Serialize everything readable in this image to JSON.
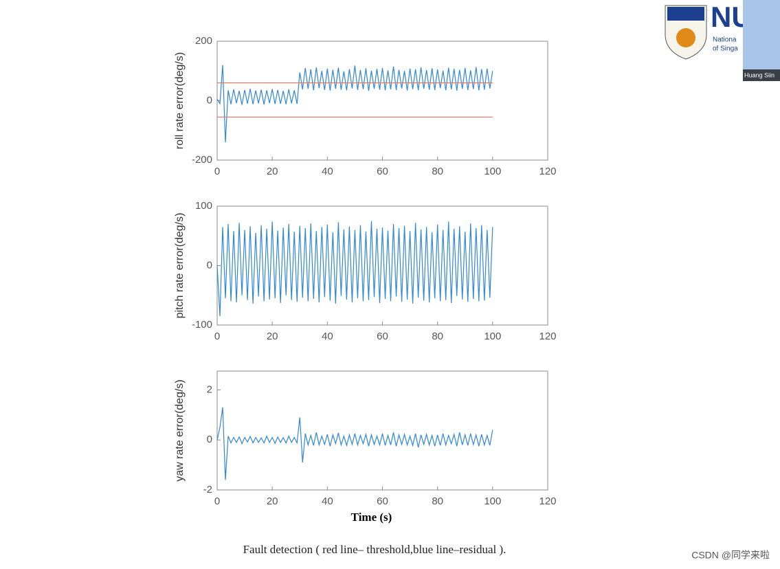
{
  "chart_data": [
    {
      "type": "line",
      "ylabel": "roll rate error(deg/s)",
      "x": [
        0,
        1,
        2,
        3,
        4,
        5,
        6,
        7,
        8,
        9,
        10,
        11,
        12,
        13,
        14,
        15,
        16,
        17,
        18,
        19,
        20,
        21,
        22,
        23,
        24,
        25,
        26,
        27,
        28,
        29,
        30,
        31,
        32,
        33,
        34,
        35,
        36,
        37,
        38,
        39,
        40,
        41,
        42,
        43,
        44,
        45,
        46,
        47,
        48,
        49,
        50,
        51,
        52,
        53,
        54,
        55,
        56,
        57,
        58,
        59,
        60,
        61,
        62,
        63,
        64,
        65,
        66,
        67,
        68,
        69,
        70,
        71,
        72,
        73,
        74,
        75,
        76,
        77,
        78,
        79,
        80,
        81,
        82,
        83,
        84,
        85,
        86,
        87,
        88,
        89,
        90,
        91,
        92,
        93,
        94,
        95,
        96,
        97,
        98,
        99,
        100
      ],
      "series": [
        {
          "color": "#2f86d8",
          "values": [
            5,
            -10,
            120,
            -140,
            35,
            -12,
            38,
            -8,
            33,
            -14,
            36,
            -10,
            40,
            -12,
            34,
            -9,
            37,
            -13,
            35,
            -8,
            39,
            -11,
            36,
            -10,
            33,
            -12,
            38,
            -9,
            35,
            -11,
            95,
            38,
            110,
            40,
            105,
            35,
            112,
            42,
            100,
            36,
            108,
            34,
            104,
            40,
            111,
            37,
            99,
            35,
            106,
            41,
            118,
            36,
            103,
            39,
            109,
            33,
            101,
            40,
            107,
            37,
            110,
            35,
            102,
            38,
            115,
            36,
            104,
            41,
            100,
            34,
            108,
            39,
            106,
            35,
            112,
            40,
            103,
            37,
            109,
            36,
            105,
            42,
            101,
            35,
            111,
            38,
            107,
            34,
            104,
            40,
            110,
            36,
            102,
            39,
            113,
            35,
            106,
            37,
            108,
            41,
            100
          ]
        }
      ],
      "threshold": {
        "color": "#e8705c",
        "values": [
          60,
          -55
        ]
      },
      "xlim": [
        0,
        120
      ],
      "xticks": [
        0,
        20,
        40,
        60,
        80,
        100,
        120
      ],
      "ylim": [
        -200,
        200
      ],
      "yticks": [
        -200,
        0,
        200
      ]
    },
    {
      "type": "line",
      "ylabel": "pitch rate error(deg/s)",
      "x": [
        0,
        1,
        2,
        3,
        4,
        5,
        6,
        7,
        8,
        9,
        10,
        11,
        12,
        13,
        14,
        15,
        16,
        17,
        18,
        19,
        20,
        21,
        22,
        23,
        24,
        25,
        26,
        27,
        28,
        29,
        30,
        31,
        32,
        33,
        34,
        35,
        36,
        37,
        38,
        39,
        40,
        41,
        42,
        43,
        44,
        45,
        46,
        47,
        48,
        49,
        50,
        51,
        52,
        53,
        54,
        55,
        56,
        57,
        58,
        59,
        60,
        61,
        62,
        63,
        64,
        65,
        66,
        67,
        68,
        69,
        70,
        71,
        72,
        73,
        74,
        75,
        76,
        77,
        78,
        79,
        80,
        81,
        82,
        83,
        84,
        85,
        86,
        87,
        88,
        89,
        90,
        91,
        92,
        93,
        94,
        95,
        96,
        97,
        98,
        99,
        100
      ],
      "series": [
        {
          "color": "#2f86d8",
          "values": [
            0,
            -85,
            65,
            -55,
            70,
            -60,
            58,
            -62,
            72,
            -50,
            60,
            -58,
            66,
            -64,
            55,
            -52,
            68,
            -60,
            62,
            -57,
            74,
            -55,
            59,
            -63,
            64,
            -50,
            70,
            -58,
            57,
            -61,
            67,
            -54,
            63,
            -60,
            71,
            -56,
            58,
            -62,
            65,
            -53,
            69,
            -59,
            56,
            -64,
            73,
            -51,
            61,
            -57,
            66,
            -62,
            60,
            -55,
            68,
            -60,
            57,
            -58,
            75,
            -53,
            62,
            -63,
            64,
            -56,
            59,
            -60,
            70,
            -52,
            63,
            -61,
            67,
            -57,
            58,
            -64,
            72,
            -54,
            61,
            -59,
            65,
            -62,
            56,
            -55,
            69,
            -60,
            60,
            -58,
            74,
            -63,
            62,
            -51,
            66,
            -57,
            57,
            -61,
            71,
            -56,
            63,
            -60,
            68,
            -59,
            60,
            -54,
            65
          ]
        }
      ],
      "xlim": [
        0,
        120
      ],
      "xticks": [
        0,
        20,
        40,
        60,
        80,
        100,
        120
      ],
      "ylim": [
        -100,
        100
      ],
      "yticks": [
        -100,
        0,
        100
      ]
    },
    {
      "type": "line",
      "ylabel": "yaw rate error(deg/s)",
      "xlabel": "Time (s)",
      "x": [
        0,
        1,
        2,
        3,
        4,
        5,
        6,
        7,
        8,
        9,
        10,
        11,
        12,
        13,
        14,
        15,
        16,
        17,
        18,
        19,
        20,
        21,
        22,
        23,
        24,
        25,
        26,
        27,
        28,
        29,
        30,
        31,
        32,
        33,
        34,
        35,
        36,
        37,
        38,
        39,
        40,
        41,
        42,
        43,
        44,
        45,
        46,
        47,
        48,
        49,
        50,
        51,
        52,
        53,
        54,
        55,
        56,
        57,
        58,
        59,
        60,
        61,
        62,
        63,
        64,
        65,
        66,
        67,
        68,
        69,
        70,
        71,
        72,
        73,
        74,
        75,
        76,
        77,
        78,
        79,
        80,
        81,
        82,
        83,
        84,
        85,
        86,
        87,
        88,
        89,
        90,
        91,
        92,
        93,
        94,
        95,
        96,
        97,
        98,
        99,
        100
      ],
      "series": [
        {
          "color": "#2f86d8",
          "values": [
            0,
            0.5,
            1.3,
            -1.6,
            0.15,
            -0.12,
            0.1,
            -0.1,
            0.12,
            -0.15,
            0.1,
            -0.08,
            0.14,
            -0.12,
            0.1,
            -0.1,
            0.08,
            -0.12,
            0.15,
            -0.1,
            0.1,
            -0.14,
            0.12,
            -0.1,
            0.09,
            -0.12,
            0.15,
            -0.1,
            0.1,
            -0.12,
            0.9,
            -0.9,
            0.25,
            -0.2,
            0.18,
            -0.22,
            0.3,
            -0.2,
            0.15,
            -0.18,
            0.22,
            -0.25,
            0.2,
            -0.15,
            0.28,
            -0.2,
            0.15,
            -0.22,
            0.2,
            -0.18,
            0.25,
            -0.2,
            0.18,
            -0.15,
            0.22,
            -0.25,
            0.2,
            -0.18,
            0.15,
            -0.2,
            0.25,
            -0.22,
            0.18,
            -0.2,
            0.3,
            -0.25,
            0.2,
            -0.18,
            0.22,
            -0.2,
            0.15,
            -0.22,
            0.25,
            -0.3,
            0.2,
            -0.18,
            0.22,
            -0.2,
            0.18,
            -0.25,
            0.2,
            -0.22,
            0.25,
            -0.2,
            0.18,
            -0.15,
            0.22,
            -0.25,
            0.3,
            -0.2,
            0.2,
            -0.22,
            0.25,
            -0.18,
            0.2,
            -0.25,
            0.22,
            -0.2,
            0.18,
            -0.22,
            0.4
          ]
        }
      ],
      "xlim": [
        0,
        120
      ],
      "xticks": [
        0,
        20,
        40,
        60,
        80,
        100,
        120
      ],
      "ylim": [
        -2,
        2.75
      ],
      "yticks": [
        -2,
        0,
        2
      ]
    }
  ],
  "caption": "Fault detection ( red line– threshold,blue line–residual ).",
  "watermark": "CSDN @同学来啦",
  "logo": {
    "text": "NU",
    "line1": "Nationa",
    "line2": "of Singa"
  },
  "video": {
    "name": "Huang Siin"
  }
}
